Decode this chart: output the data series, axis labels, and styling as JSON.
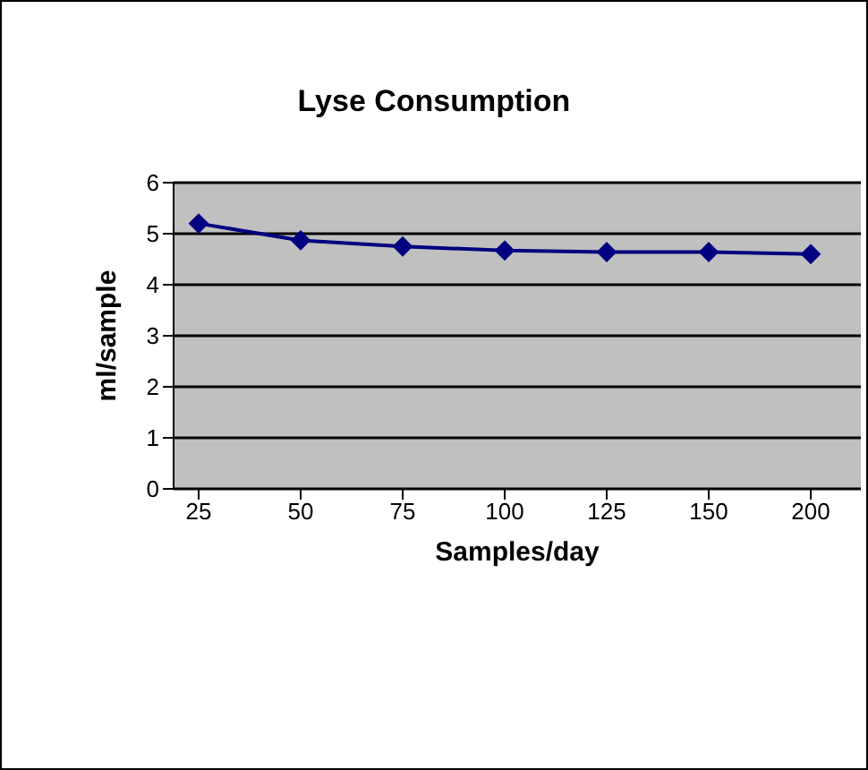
{
  "chart_data": {
    "type": "line",
    "title": "Lyse Consumption",
    "xlabel": "Samples/day",
    "ylabel": "ml/sample",
    "categories": [
      "25",
      "50",
      "75",
      "100",
      "125",
      "150",
      "200"
    ],
    "series": [
      {
        "color": "#000080",
        "values": [
          5.2,
          4.87,
          4.75,
          4.67,
          4.64,
          4.64,
          4.6
        ]
      }
    ],
    "ylim": [
      0,
      6
    ],
    "yticks": [
      0,
      1,
      2,
      3,
      4,
      5,
      6
    ],
    "grid": "y",
    "marker": "diamond",
    "legend": false
  }
}
